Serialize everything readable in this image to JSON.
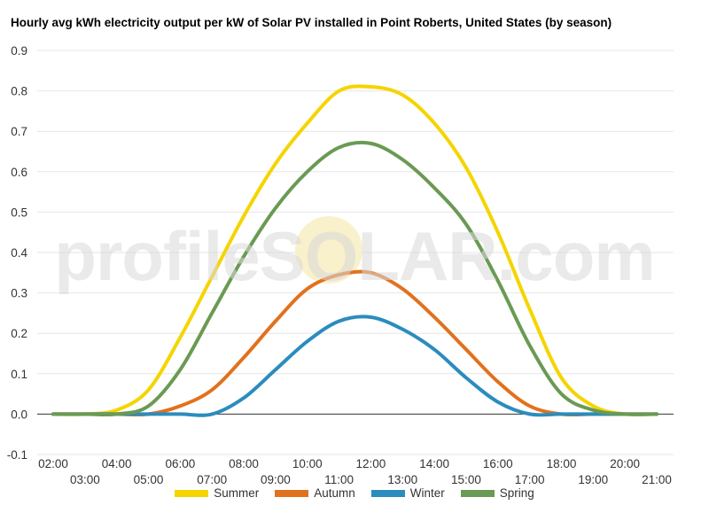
{
  "chart_data": {
    "type": "line",
    "title": "Hourly avg kWh electricity output per kW of Solar PV installed in Point Roberts, United States (by season)",
    "xlabel": "",
    "ylabel": "",
    "x": [
      "02:00",
      "03:00",
      "04:00",
      "05:00",
      "06:00",
      "07:00",
      "08:00",
      "09:00",
      "10:00",
      "11:00",
      "12:00",
      "13:00",
      "14:00",
      "15:00",
      "16:00",
      "17:00",
      "18:00",
      "19:00",
      "20:00",
      "21:00"
    ],
    "ylim": [
      -0.1,
      0.9
    ],
    "yticks": [
      "-0.1",
      "0.0",
      "0.1",
      "0.2",
      "0.3",
      "0.4",
      "0.5",
      "0.6",
      "0.7",
      "0.8",
      "0.9"
    ],
    "grid": true,
    "legend_position": "bottom",
    "series": [
      {
        "name": "Summer",
        "color": "#f5d400",
        "values": [
          0.0,
          0.0,
          0.01,
          0.06,
          0.19,
          0.34,
          0.49,
          0.62,
          0.72,
          0.8,
          0.81,
          0.79,
          0.72,
          0.61,
          0.45,
          0.26,
          0.09,
          0.02,
          0.0,
          0.0
        ]
      },
      {
        "name": "Autumn",
        "color": "#e2711d",
        "values": [
          0.0,
          0.0,
          0.0,
          0.0,
          0.02,
          0.06,
          0.14,
          0.23,
          0.31,
          0.345,
          0.35,
          0.31,
          0.24,
          0.16,
          0.08,
          0.02,
          0.0,
          0.0,
          0.0,
          0.0
        ]
      },
      {
        "name": "Winter",
        "color": "#2b8cbe",
        "values": [
          0.0,
          0.0,
          0.0,
          0.0,
          0.0,
          0.0,
          0.04,
          0.11,
          0.18,
          0.23,
          0.24,
          0.21,
          0.16,
          0.09,
          0.03,
          0.0,
          0.0,
          0.0,
          0.0,
          0.0
        ]
      },
      {
        "name": "Spring",
        "color": "#6a9a53",
        "values": [
          0.0,
          0.0,
          0.0,
          0.02,
          0.11,
          0.25,
          0.39,
          0.51,
          0.6,
          0.66,
          0.67,
          0.63,
          0.56,
          0.47,
          0.33,
          0.17,
          0.05,
          0.01,
          0.0,
          0.0
        ]
      }
    ]
  },
  "watermark": {
    "text": "profileSOLAR.com",
    "sun_color": "#f8eec2"
  }
}
